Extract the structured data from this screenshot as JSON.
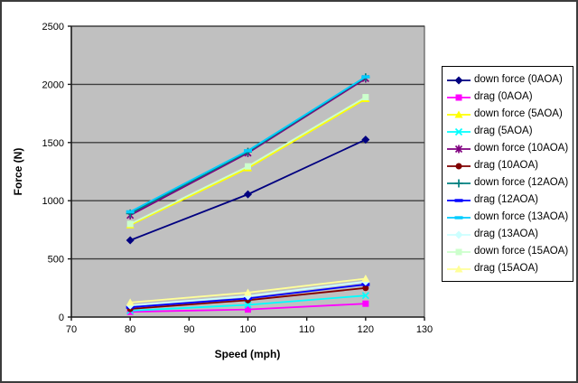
{
  "window": {
    "background": "#FFFFFF",
    "border_color": "#3c3c3c"
  },
  "chart_data": {
    "type": "line",
    "title": "",
    "xlabel": "Speed (mph)",
    "ylabel": "Force (N)",
    "x": [
      80,
      100,
      120
    ],
    "xlim": [
      70,
      130
    ],
    "ylim": [
      0,
      2500
    ],
    "x_ticks": [
      70,
      80,
      90,
      100,
      110,
      120,
      130
    ],
    "y_ticks": [
      0,
      500,
      1000,
      1500,
      2000,
      2500
    ],
    "grid": true,
    "plot_background": "#C0C0C0",
    "gridline_color": "#3f3f3f",
    "axis_color": "#1a1a1a",
    "legend_position": "right",
    "series": [
      {
        "name": "down force (0AOA)",
        "color": "#000080",
        "marker": "diamond",
        "values": [
          660,
          1055,
          1525
        ]
      },
      {
        "name": "drag (0AOA)",
        "color": "#FF00FF",
        "marker": "square",
        "values": [
          45,
          65,
          115
        ]
      },
      {
        "name": "down force (5AOA)",
        "color": "#FFFF00",
        "marker": "triangle",
        "values": [
          790,
          1280,
          1875
        ]
      },
      {
        "name": "drag (5AOA)",
        "color": "#00FFFF",
        "marker": "x",
        "values": [
          55,
          105,
          185
        ]
      },
      {
        "name": "down force (10AOA)",
        "color": "#800080",
        "marker": "star",
        "values": [
          875,
          1410,
          2050
        ]
      },
      {
        "name": "drag (10AOA)",
        "color": "#800000",
        "marker": "circle",
        "values": [
          70,
          145,
          250
        ]
      },
      {
        "name": "down force (12AOA)",
        "color": "#008080",
        "marker": "plus",
        "values": [
          890,
          1420,
          2060
        ]
      },
      {
        "name": "drag (12AOA)",
        "color": "#0000FF",
        "marker": "dash",
        "values": [
          85,
          160,
          280
        ]
      },
      {
        "name": "down force (13AOA)",
        "color": "#00CCFF",
        "marker": "dash",
        "values": [
          905,
          1430,
          2065
        ]
      },
      {
        "name": "drag (13AOA)",
        "color": "#CCFFFF",
        "marker": "diamond",
        "values": [
          100,
          180,
          305
        ]
      },
      {
        "name": "down force (15AOA)",
        "color": "#CCFFCC",
        "marker": "square",
        "values": [
          800,
          1295,
          1890
        ]
      },
      {
        "name": "drag (15AOA)",
        "color": "#FFFF99",
        "marker": "triangle",
        "values": [
          125,
          210,
          330
        ]
      }
    ]
  }
}
